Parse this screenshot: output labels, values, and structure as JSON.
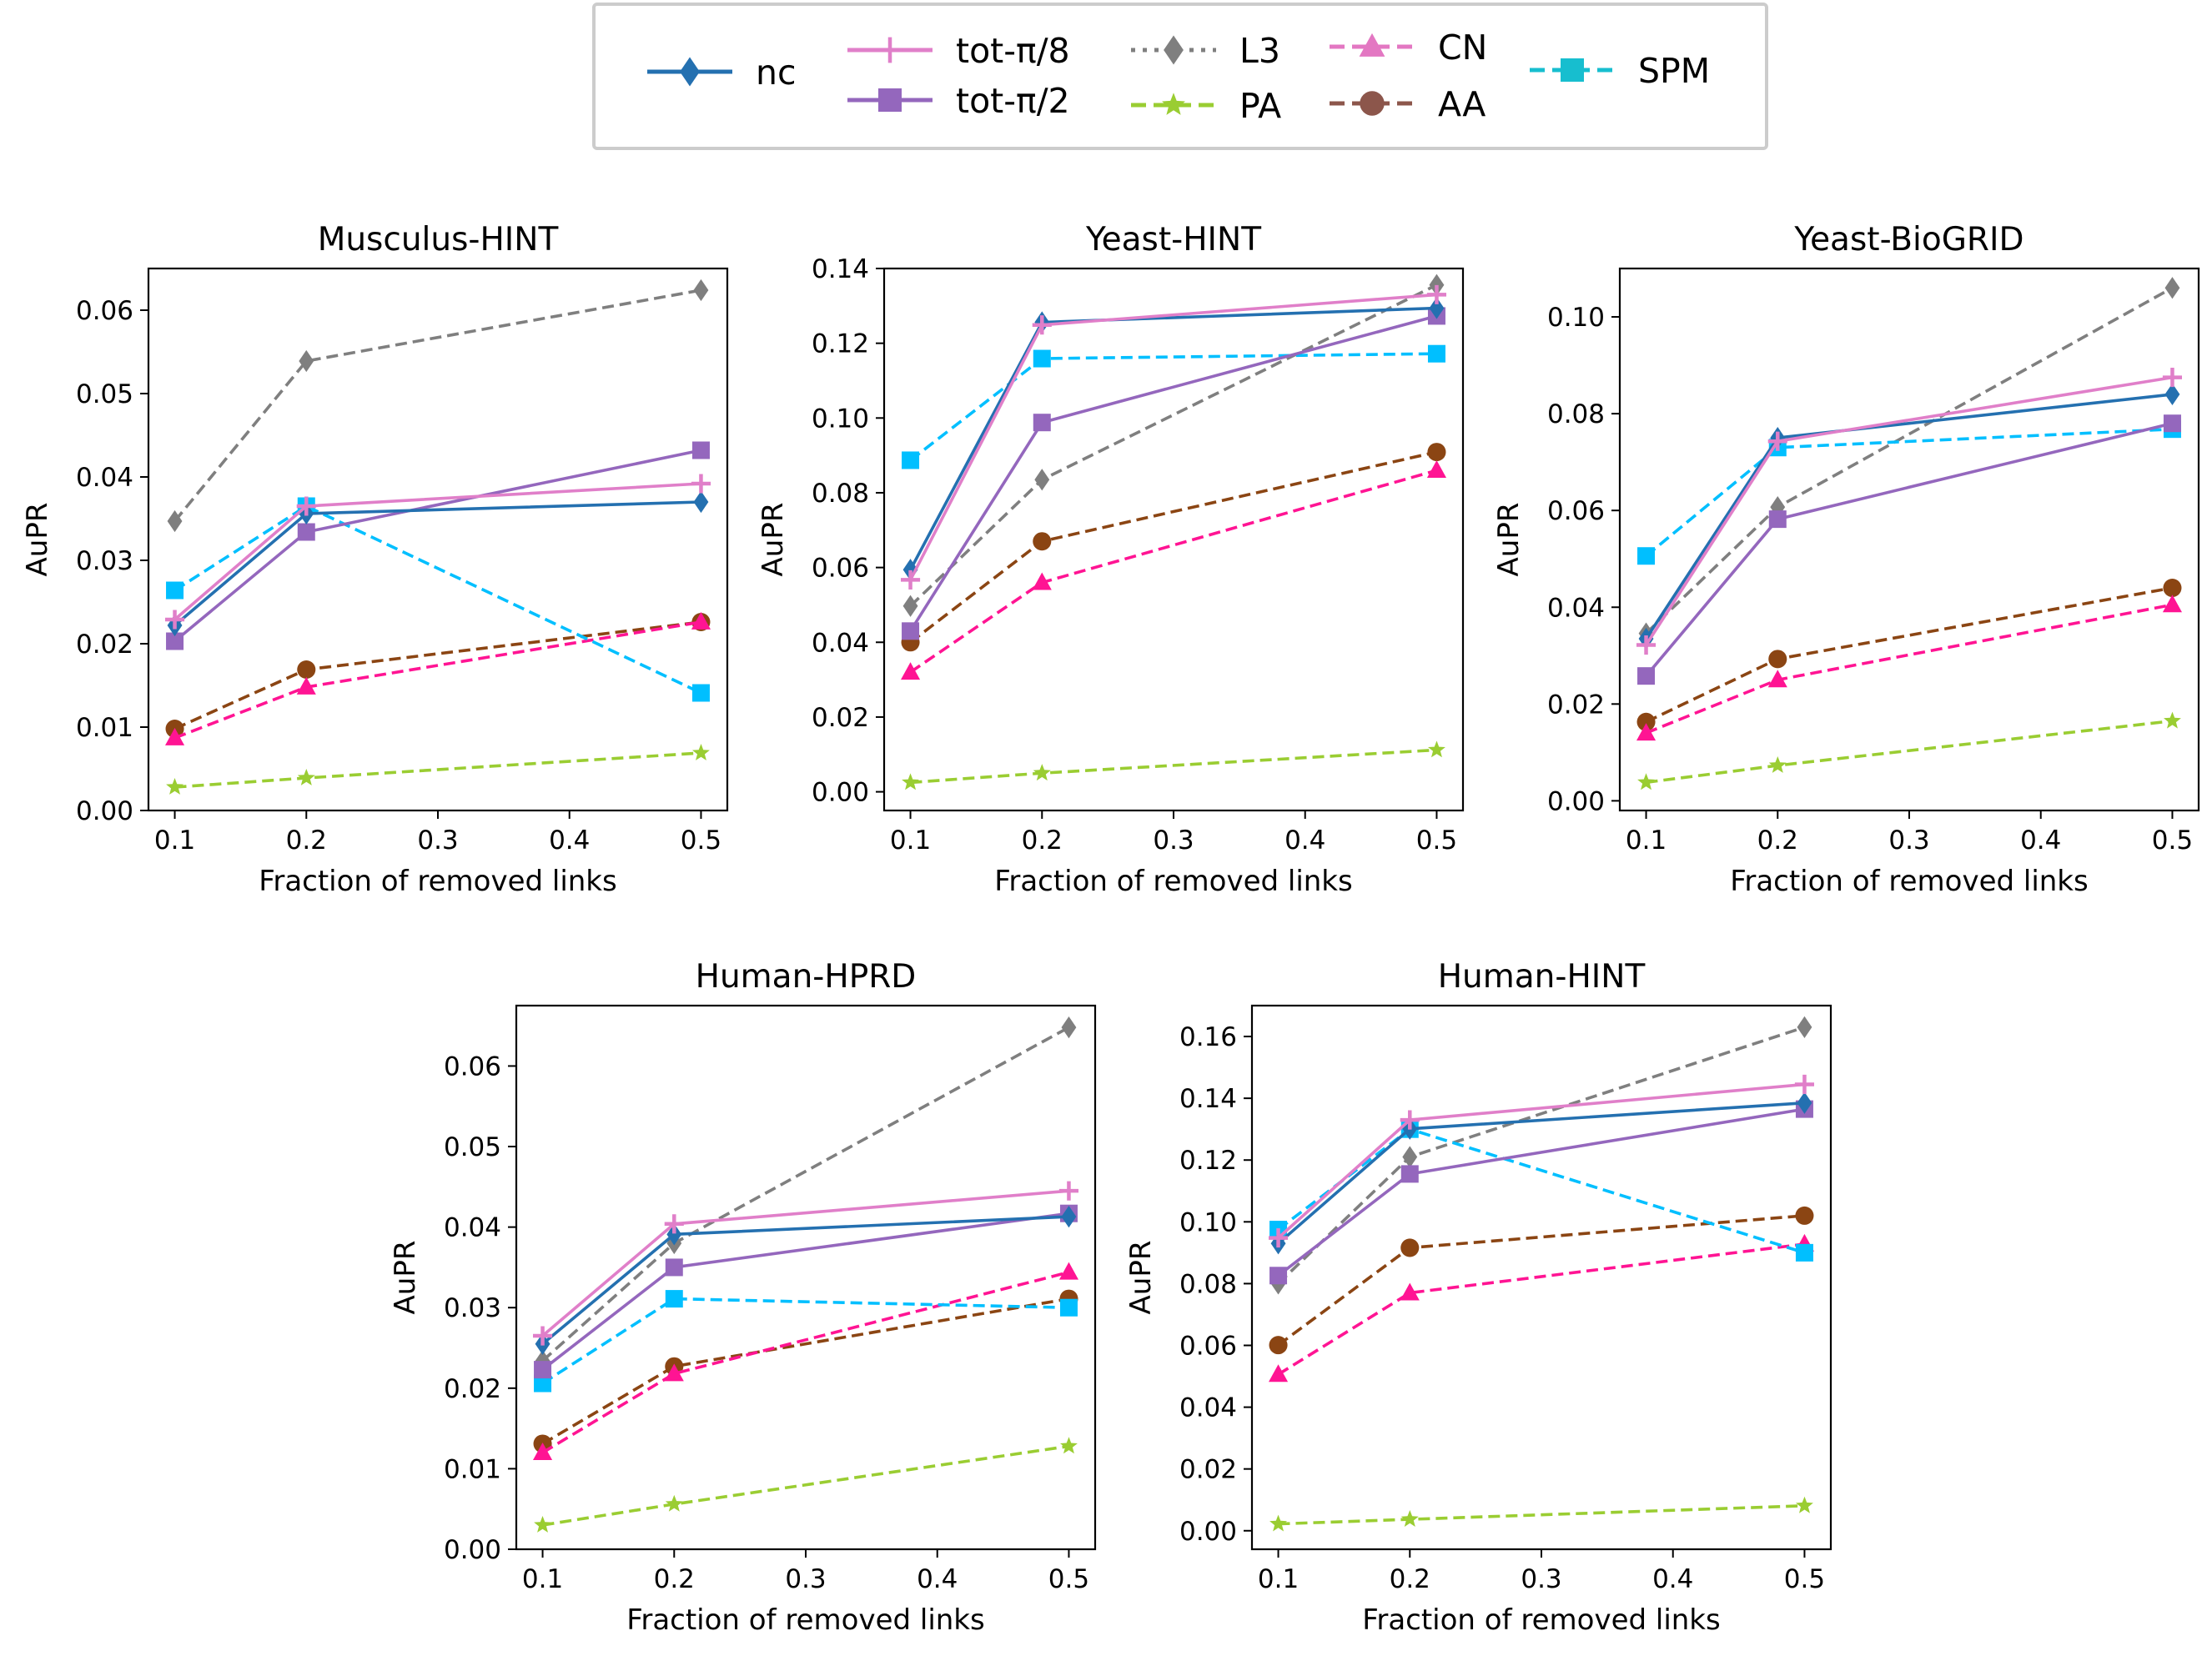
{
  "legend": {
    "entries": [
      {
        "key": "nc",
        "label": "nc",
        "color": "#2470b0",
        "marker": "diamond",
        "dash": "solid"
      },
      {
        "key": "tot8",
        "label": "tot-π/8",
        "color": "#e07fc9",
        "marker": "plus",
        "dash": "solid"
      },
      {
        "key": "tot2",
        "label": "tot-π/2",
        "color": "#9467bd",
        "marker": "square",
        "dash": "solid"
      },
      {
        "key": "L3",
        "label": "L3",
        "color": "#7f7f7f",
        "marker": "diamond",
        "dash": "dotted"
      },
      {
        "key": "PA",
        "label": "PA",
        "color": "#9acd32",
        "marker": "star",
        "dash": "dashed"
      },
      {
        "key": "CN",
        "label": "CN",
        "color": "#ff1493",
        "legendColor": "#e377c2",
        "marker": "triangle",
        "dash": "dashed"
      },
      {
        "key": "AA",
        "label": "AA",
        "color": "#8b4513",
        "legendColor": "#8c564b",
        "marker": "circle",
        "dash": "dashed"
      },
      {
        "key": "SPM",
        "label": "SPM",
        "color": "#00bfff",
        "legendColor": "#17becf",
        "marker": "square",
        "dash": "dashed"
      }
    ]
  },
  "chart_data": [
    {
      "type": "line",
      "title": "Musculus-HINT",
      "xlabel": "Fraction of removed links",
      "ylabel": "AuPR",
      "x": [
        0.1,
        0.2,
        0.5
      ],
      "xlim": [
        0.08,
        0.52
      ],
      "ylim": [
        0.0,
        0.065
      ],
      "xticks": [
        "0.1",
        "0.2",
        "0.3",
        "0.4",
        "0.5"
      ],
      "yticks": [
        "0.00",
        "0.01",
        "0.02",
        "0.03",
        "0.04",
        "0.05",
        "0.06"
      ],
      "series": [
        {
          "key": "L3",
          "values": [
            0.0347,
            0.0539,
            0.0624
          ]
        },
        {
          "key": "PA",
          "values": [
            0.0028,
            0.0039,
            0.0069
          ]
        },
        {
          "key": "AA",
          "values": [
            0.0098,
            0.0169,
            0.0226
          ]
        },
        {
          "key": "CN",
          "values": [
            0.0087,
            0.0148,
            0.0226
          ]
        },
        {
          "key": "SPM",
          "values": [
            0.0264,
            0.0365,
            0.0141
          ]
        },
        {
          "key": "tot2",
          "values": [
            0.0203,
            0.0334,
            0.0432
          ]
        },
        {
          "key": "nc",
          "values": [
            0.0222,
            0.0356,
            0.037
          ]
        },
        {
          "key": "tot8",
          "values": [
            0.0229,
            0.0365,
            0.0392
          ]
        }
      ]
    },
    {
      "type": "line",
      "title": "Yeast-HINT",
      "xlabel": "Fraction of removed links",
      "ylabel": "AuPR",
      "x": [
        0.1,
        0.2,
        0.5
      ],
      "xlim": [
        0.08,
        0.52
      ],
      "ylim": [
        -0.005,
        0.14
      ],
      "xticks": [
        "0.1",
        "0.2",
        "0.3",
        "0.4",
        "0.5"
      ],
      "yticks": [
        "0.00",
        "0.02",
        "0.04",
        "0.06",
        "0.08",
        "0.10",
        "0.12",
        "0.14"
      ],
      "series": [
        {
          "key": "L3",
          "values": [
            0.0497,
            0.0835,
            0.1356
          ]
        },
        {
          "key": "PA",
          "values": [
            0.0025,
            0.005,
            0.0112
          ]
        },
        {
          "key": "AA",
          "values": [
            0.04,
            0.067,
            0.0909
          ]
        },
        {
          "key": "CN",
          "values": [
            0.032,
            0.056,
            0.086
          ]
        },
        {
          "key": "SPM",
          "values": [
            0.0887,
            0.1159,
            0.1172
          ]
        },
        {
          "key": "tot2",
          "values": [
            0.043,
            0.0988,
            0.1273
          ]
        },
        {
          "key": "nc",
          "values": [
            0.0594,
            0.1256,
            0.1294
          ]
        },
        {
          "key": "tot8",
          "values": [
            0.0567,
            0.1249,
            0.133
          ]
        }
      ]
    },
    {
      "type": "line",
      "title": "Yeast-BioGRID",
      "xlabel": "Fraction of removed links",
      "ylabel": "AuPR",
      "x": [
        0.1,
        0.2,
        0.5
      ],
      "xlim": [
        0.08,
        0.52
      ],
      "ylim": [
        -0.002,
        0.11
      ],
      "xticks": [
        "0.1",
        "0.2",
        "0.3",
        "0.4",
        "0.5"
      ],
      "yticks": [
        "0.00",
        "0.02",
        "0.04",
        "0.06",
        "0.08",
        "0.10"
      ],
      "series": [
        {
          "key": "L3",
          "values": [
            0.0346,
            0.0607,
            0.106
          ]
        },
        {
          "key": "PA",
          "values": [
            0.0038,
            0.0073,
            0.0165
          ]
        },
        {
          "key": "AA",
          "values": [
            0.0163,
            0.0293,
            0.044
          ]
        },
        {
          "key": "CN",
          "values": [
            0.014,
            0.025,
            0.0405
          ]
        },
        {
          "key": "SPM",
          "values": [
            0.0506,
            0.073,
            0.0768
          ]
        },
        {
          "key": "tot2",
          "values": [
            0.0258,
            0.0582,
            0.078
          ]
        },
        {
          "key": "nc",
          "values": [
            0.0335,
            0.075,
            0.084
          ]
        },
        {
          "key": "tot8",
          "values": [
            0.0322,
            0.0743,
            0.0875
          ]
        }
      ]
    },
    {
      "type": "line",
      "title": "Human-HPRD",
      "xlabel": "Fraction of removed links",
      "ylabel": "AuPR",
      "x": [
        0.1,
        0.2,
        0.5
      ],
      "xlim": [
        0.08,
        0.52
      ],
      "ylim": [
        0.0,
        0.0675
      ],
      "xticks": [
        "0.1",
        "0.2",
        "0.3",
        "0.4",
        "0.5"
      ],
      "yticks": [
        "0.00",
        "0.01",
        "0.02",
        "0.03",
        "0.04",
        "0.05",
        "0.06"
      ],
      "series": [
        {
          "key": "L3",
          "values": [
            0.0234,
            0.038,
            0.0648
          ]
        },
        {
          "key": "PA",
          "values": [
            0.003,
            0.0056,
            0.0128
          ]
        },
        {
          "key": "AA",
          "values": [
            0.0131,
            0.0227,
            0.0311
          ]
        },
        {
          "key": "CN",
          "values": [
            0.012,
            0.0218,
            0.0344
          ]
        },
        {
          "key": "SPM",
          "values": [
            0.0206,
            0.0311,
            0.03
          ]
        },
        {
          "key": "tot2",
          "values": [
            0.0223,
            0.035,
            0.0417
          ]
        },
        {
          "key": "nc",
          "values": [
            0.0255,
            0.0391,
            0.0413
          ]
        },
        {
          "key": "tot8",
          "values": [
            0.0265,
            0.0404,
            0.0445
          ]
        }
      ]
    },
    {
      "type": "line",
      "title": "Human-HINT",
      "xlabel": "Fraction of removed links",
      "ylabel": "AuPR",
      "x": [
        0.1,
        0.2,
        0.5
      ],
      "xlim": [
        0.08,
        0.52
      ],
      "ylim": [
        -0.006,
        0.17
      ],
      "xticks": [
        "0.1",
        "0.2",
        "0.3",
        "0.4",
        "0.5"
      ],
      "yticks": [
        "0.00",
        "0.02",
        "0.04",
        "0.06",
        "0.08",
        "0.10",
        "0.12",
        "0.14",
        "0.16"
      ],
      "series": [
        {
          "key": "L3",
          "values": [
            0.08,
            0.121,
            0.163
          ]
        },
        {
          "key": "PA",
          "values": [
            0.0022,
            0.0037,
            0.0081
          ]
        },
        {
          "key": "AA",
          "values": [
            0.0601,
            0.0916,
            0.102
          ]
        },
        {
          "key": "CN",
          "values": [
            0.0506,
            0.077,
            0.0928
          ]
        },
        {
          "key": "SPM",
          "values": [
            0.0975,
            0.13,
            0.09
          ]
        },
        {
          "key": "tot2",
          "values": [
            0.0826,
            0.1155,
            0.1365
          ]
        },
        {
          "key": "nc",
          "values": [
            0.093,
            0.1301,
            0.1385
          ]
        },
        {
          "key": "tot8",
          "values": [
            0.0948,
            0.133,
            0.1445
          ]
        }
      ]
    }
  ]
}
